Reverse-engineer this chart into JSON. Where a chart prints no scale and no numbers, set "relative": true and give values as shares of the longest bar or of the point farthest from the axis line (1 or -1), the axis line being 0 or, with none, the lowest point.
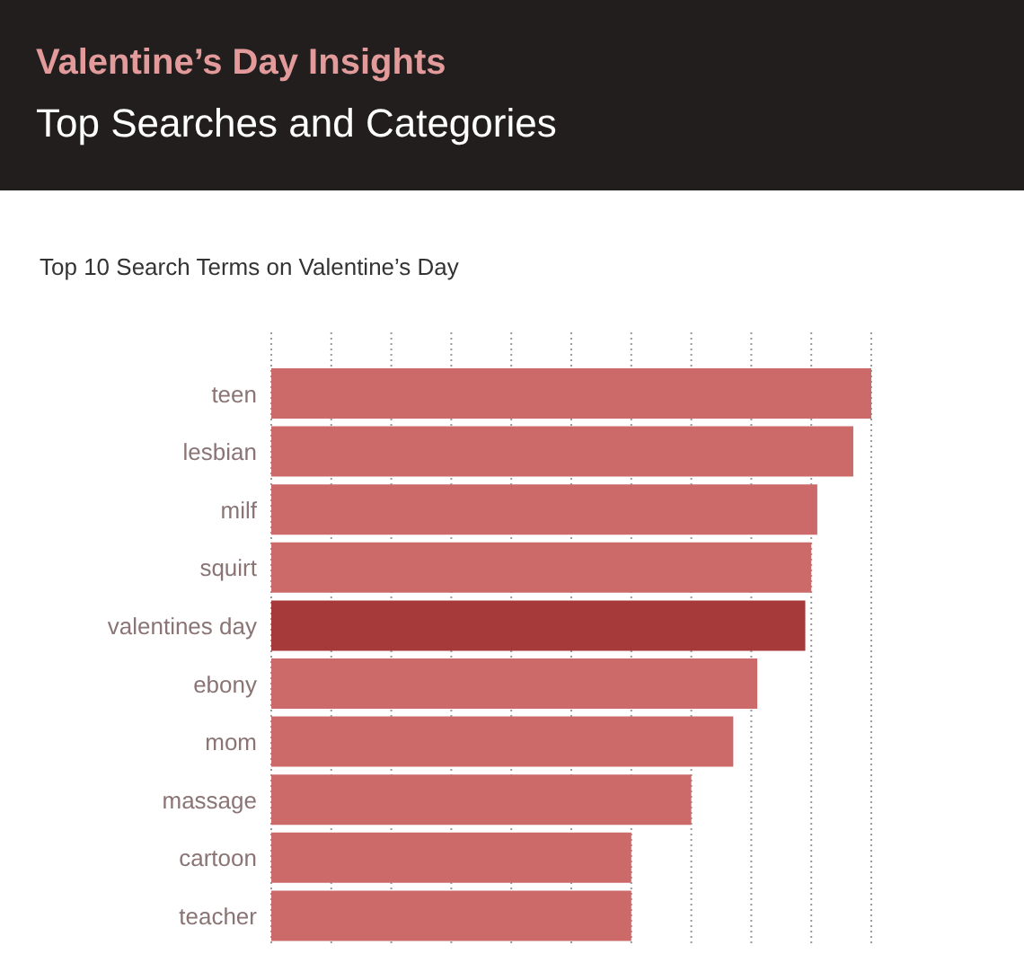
{
  "chart_data": {
    "type": "bar",
    "orientation": "horizontal",
    "relative": true,
    "title": "Valentine’s Day Insights",
    "subtitle": "Top Searches and Categories",
    "annotations": [
      "Top 10 Search Terms on Valentine’s Day"
    ],
    "categories": [
      "teen",
      "lesbian",
      "milf",
      "squirt",
      "valentines day",
      "ebony",
      "mom",
      "massage",
      "cartoon",
      "teacher"
    ],
    "values": [
      1,
      0.97,
      0.91,
      0.9,
      0.89,
      0.81,
      0.77,
      0.7,
      0.6,
      0.6
    ],
    "colors": [
      "#cc6a6a",
      "#cc6a6a",
      "#cc6a6a",
      "#cc6a6a",
      "#a63a3a",
      "#cc6a6a",
      "#cc6a6a",
      "#cc6a6a",
      "#cc6a6a",
      "#cc6a6a"
    ],
    "grid": "x"
  }
}
